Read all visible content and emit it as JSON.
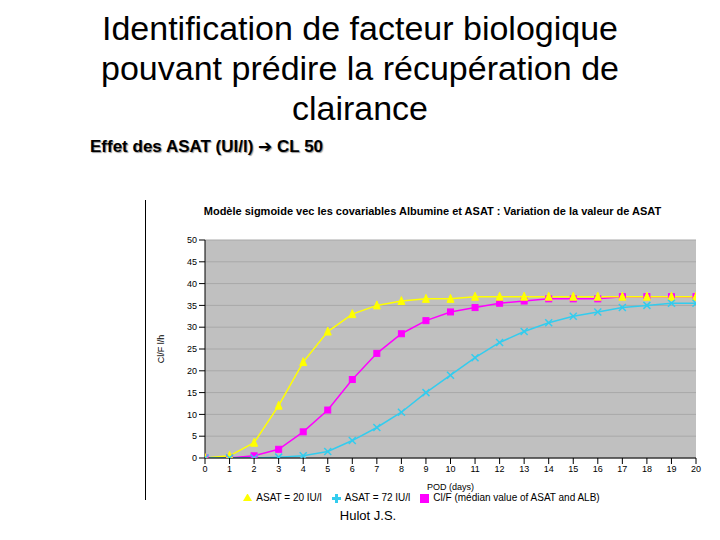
{
  "header": {
    "title": "Identification de facteur biologique pouvant prédire la récupération de clairance",
    "subtitle": "Effet des ASAT (UI/l) ➔ CL 50"
  },
  "footer": "Hulot J.S.",
  "chart_data": {
    "type": "line",
    "title": "Modèle sigmoide vec les covariables Albumine et ASAT : Variation de la valeur de ASAT",
    "y_label": "Cl/F l/h",
    "x_label": "POD (days)",
    "x": [
      0,
      1,
      2,
      3,
      4,
      5,
      6,
      7,
      8,
      9,
      10,
      11,
      12,
      13,
      14,
      15,
      16,
      17,
      18,
      19,
      20
    ],
    "series": [
      {
        "name": "Cl/F (médian value of ASAT and ALB)",
        "color": "#ff00ff",
        "marker": "square",
        "values": [
          0,
          0,
          0.5,
          2,
          6,
          11,
          18,
          24,
          28.5,
          31.5,
          33.5,
          34.5,
          35.5,
          36,
          36.5,
          36.5,
          36.5,
          37,
          37,
          37,
          37
        ]
      },
      {
        "name": "ASAT = 20 IU/l",
        "color": "#ffff00",
        "marker": "triangle",
        "values": [
          0,
          0.5,
          3.5,
          12,
          22,
          29,
          33,
          35,
          36,
          36.5,
          36.5,
          37,
          37,
          37,
          37,
          37,
          37,
          37,
          37,
          37,
          37
        ]
      },
      {
        "name": "ASAT = 72 IU/l",
        "color": "#33ccee",
        "marker": "x",
        "values": [
          0,
          0,
          0,
          0.2,
          0.5,
          1.5,
          4,
          7,
          10.5,
          15,
          19,
          23,
          26.5,
          29,
          31,
          32.5,
          33.5,
          34.5,
          35,
          35.5,
          35.5
        ]
      }
    ],
    "xlim": [
      0,
      20
    ],
    "xticks": [
      0,
      1,
      2,
      3,
      4,
      5,
      6,
      7,
      8,
      9,
      10,
      11,
      12,
      13,
      14,
      15,
      16,
      17,
      18,
      19,
      20
    ],
    "ylim": [
      0,
      50
    ],
    "yticks": [
      0,
      5,
      10,
      15,
      20,
      25,
      30,
      35,
      40,
      45,
      50
    ],
    "grid": true,
    "legend": "bottom"
  }
}
